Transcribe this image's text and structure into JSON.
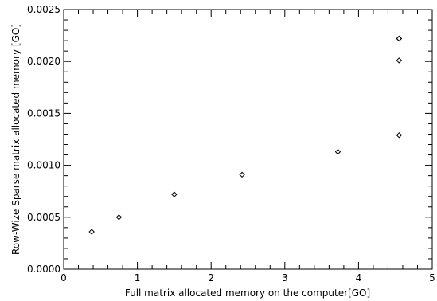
{
  "chart_data": {
    "type": "scatter",
    "title": "",
    "xlabel": "Full matrix allocated memory on the computer[GO]",
    "ylabel": "Row-Wize Sparse matrix allocated memory [GO]",
    "xlim": [
      0,
      5
    ],
    "ylim": [
      0,
      0.0025
    ],
    "x_ticks": [
      "0",
      "1",
      "2",
      "3",
      "4",
      "5"
    ],
    "y_ticks": [
      "0.0000",
      "0.0005",
      "0.0010",
      "0.0015",
      "0.0020",
      "0.0025"
    ],
    "marker": "diamond",
    "grid": false,
    "x": [
      0.38,
      0.75,
      1.5,
      2.42,
      3.72,
      4.55,
      4.55,
      4.55,
      4.55
    ],
    "y": [
      0.00036,
      0.0005,
      0.00072,
      0.00091,
      0.00113,
      0.00129,
      0.00201,
      0.00222,
      0.00222
    ]
  }
}
